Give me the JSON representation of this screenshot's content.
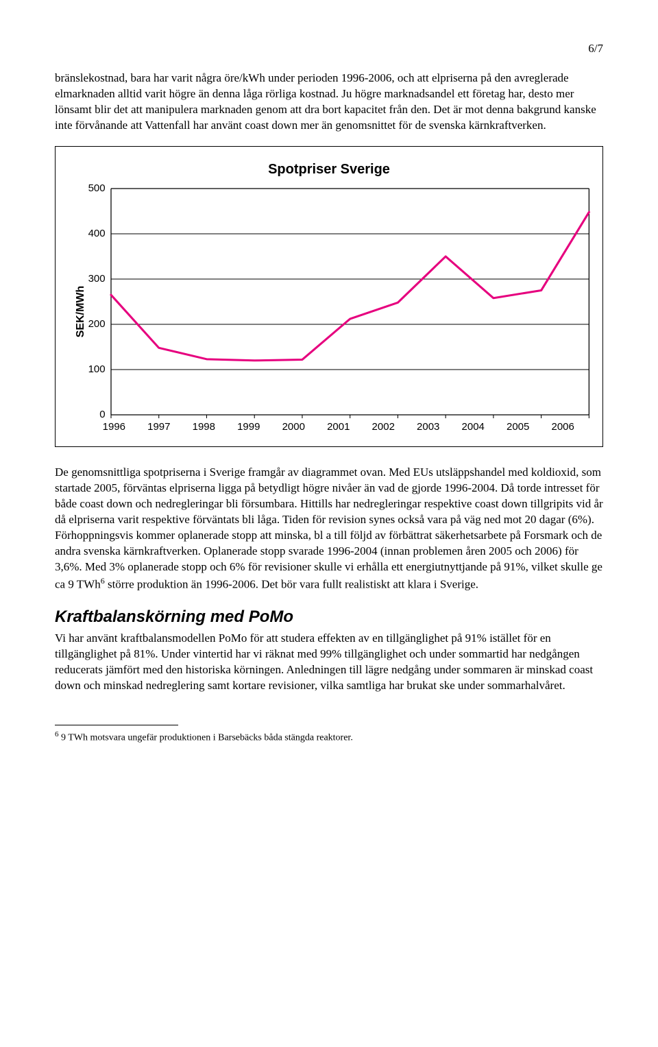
{
  "page_number": "6/7",
  "para1": "bränslekostnad, bara har varit några öre/kWh under perioden 1996-2006, och att elpriserna på den avreglerade elmarknaden alltid varit högre än denna låga rörliga kostnad. Ju högre marknadsandel ett företag har, desto mer lönsamt blir det att manipulera marknaden genom att dra bort kapacitet från den. Det är mot denna bakgrund kanske inte förvånande att Vattenfall har använt coast down mer än genomsnittet för de svenska kärnkraftverken.",
  "chart": {
    "type": "line",
    "title": "Spotpriser Sverige",
    "y_axis_label": "SEK/MWh",
    "y_ticks": [
      "500",
      "400",
      "300",
      "200",
      "100",
      "0"
    ],
    "ylim": [
      0,
      500
    ],
    "x_ticks": [
      "1996",
      "1997",
      "1998",
      "1999",
      "2000",
      "2001",
      "2002",
      "2003",
      "2004",
      "2005",
      "2006"
    ],
    "values": [
      265,
      148,
      123,
      120,
      122,
      212,
      248,
      350,
      258,
      275,
      448
    ],
    "line_color": "#e6007e",
    "line_width": 3,
    "grid_color": "#000000",
    "background_color": "#ffffff",
    "title_fontsize": 20,
    "label_fontsize": 16,
    "tick_fontsize": 15
  },
  "para2_a": "De genomsnittliga spotpriserna i Sverige framgår av diagrammet ovan. Med EUs utsläppshandel med koldioxid, som startade 2005, förväntas elpriserna ligga på betydligt högre nivåer än vad de gjorde 1996-2004. Då torde intresset för både coast down och nedregleringar bli försumbara. Hittills har nedregleringar respektive coast down tillgripits vid år då elpriserna varit respektive förväntats bli låga. Tiden för revision synes också vara på väg ned mot 20 dagar (6%). Förhoppningsvis kommer oplanerade stopp att minska, bl a till följd av förbättrat säkerhetsarbete på Forsmark och de andra svenska kärnkraftverken. Oplanerade stopp svarade 1996-2004 (innan problemen åren 2005 och 2006) för 3,6%. Med 3% oplanerade stopp och 6% för revisioner skulle vi erhålla ett energiutnyttjande på 91%, vilket skulle ge ca 9 TWh",
  "para2_fn_mark": "6",
  "para2_b": " större produktion än 1996-2006. Det bör vara fullt realistiskt att klara i Sverige.",
  "section_heading": "Kraftbalanskörning med PoMo",
  "para3": "Vi har använt kraftbalansmodellen PoMo för att studera effekten av en tillgänglighet på 91% istället för en tillgänglighet på 81%. Under vintertid har vi räknat med 99% tillgänglighet och under sommartid har nedgången reducerats jämfört med den historiska körningen. Anledningen till lägre nedgång under sommaren är minskad coast down och minskad nedreglering samt kortare revisioner, vilka samtliga har brukat ske under sommarhalvåret.",
  "footnote_mark": "6",
  "footnote_text": " 9 TWh motsvara ungefär produktionen i Barsebäcks båda stängda reaktorer."
}
